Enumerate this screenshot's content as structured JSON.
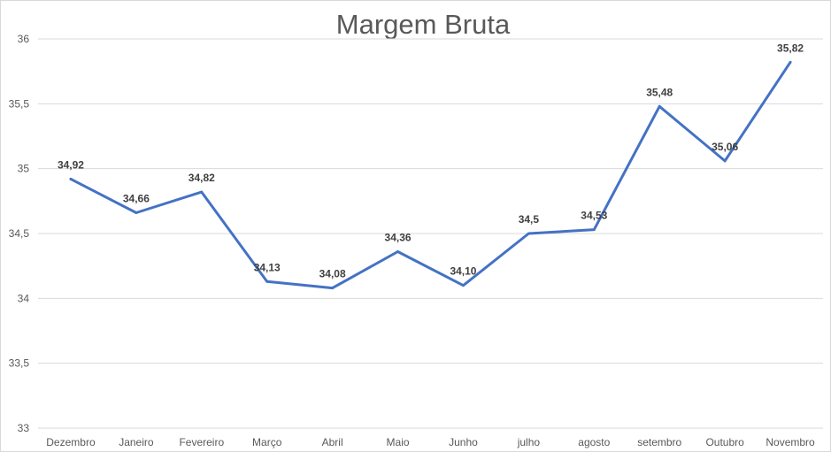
{
  "chart_data": {
    "type": "line",
    "title": "Margem Bruta",
    "xlabel": "",
    "ylabel": "",
    "ylim": [
      33,
      36
    ],
    "yticks": [
      33,
      33.5,
      34,
      34.5,
      35,
      35.5,
      36
    ],
    "ytick_labels": [
      "33",
      "33,5",
      "34",
      "34,5",
      "35",
      "35,5",
      "36"
    ],
    "grid": true,
    "legend": "none",
    "categories": [
      "Dezembro",
      "Janeiro",
      "Fevereiro",
      "Março",
      "Abril",
      "Maio",
      "Junho",
      "julho",
      "agosto",
      "setembro",
      "Outubro",
      "Novembro"
    ],
    "series": [
      {
        "color": "#4472c4",
        "values": [
          34.92,
          34.66,
          34.82,
          34.13,
          34.08,
          34.36,
          34.1,
          34.5,
          34.53,
          35.48,
          35.06,
          35.82
        ],
        "labels": [
          "34,92",
          "34,66",
          "34,82",
          "34,13",
          "34,08",
          "34,36",
          "34,10",
          "34,5",
          "34,53",
          "35,48",
          "35,06",
          "35,82"
        ]
      }
    ]
  }
}
